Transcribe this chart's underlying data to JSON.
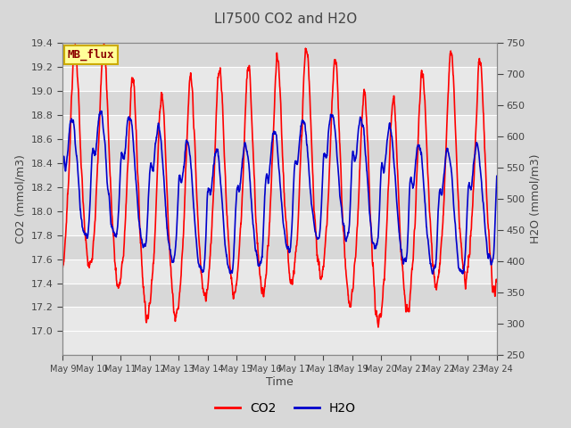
{
  "title": "LI7500 CO2 and H2O",
  "xlabel": "Time",
  "ylabel_left": "CO2 (mmol/m3)",
  "ylabel_right": "H2O (mmol/m3)",
  "co2_ylim": [
    16.8,
    19.4
  ],
  "h2o_ylim": [
    250,
    750
  ],
  "co2_yticks": [
    17.0,
    17.2,
    17.4,
    17.6,
    17.8,
    18.0,
    18.2,
    18.4,
    18.6,
    18.8,
    19.0,
    19.2,
    19.4
  ],
  "h2o_yticks": [
    250,
    300,
    350,
    400,
    450,
    500,
    550,
    600,
    650,
    700,
    750
  ],
  "xtick_labels": [
    "May 9",
    "May 10",
    "May 11",
    "May 12",
    "May 13",
    "May 14",
    "May 15",
    "May 16",
    "May 17",
    "May 18",
    "May 19",
    "May 20",
    "May 21",
    "May 22",
    "May 23",
    "May 24"
  ],
  "co2_color": "#ff0000",
  "h2o_color": "#0000cc",
  "bg_color": "#d8d8d8",
  "plot_bg_color_light": "#e8e8e8",
  "plot_bg_color_dark": "#d0d0d0",
  "legend_label_co2": "CO2",
  "legend_label_h2o": "H2O",
  "watermark_text": "MB_flux",
  "watermark_bg": "#ffff99",
  "watermark_border": "#ccaa00",
  "title_color": "#444444",
  "axes_label_color": "#444444",
  "tick_color": "#444444",
  "line_width": 1.2,
  "n_points": 2000
}
